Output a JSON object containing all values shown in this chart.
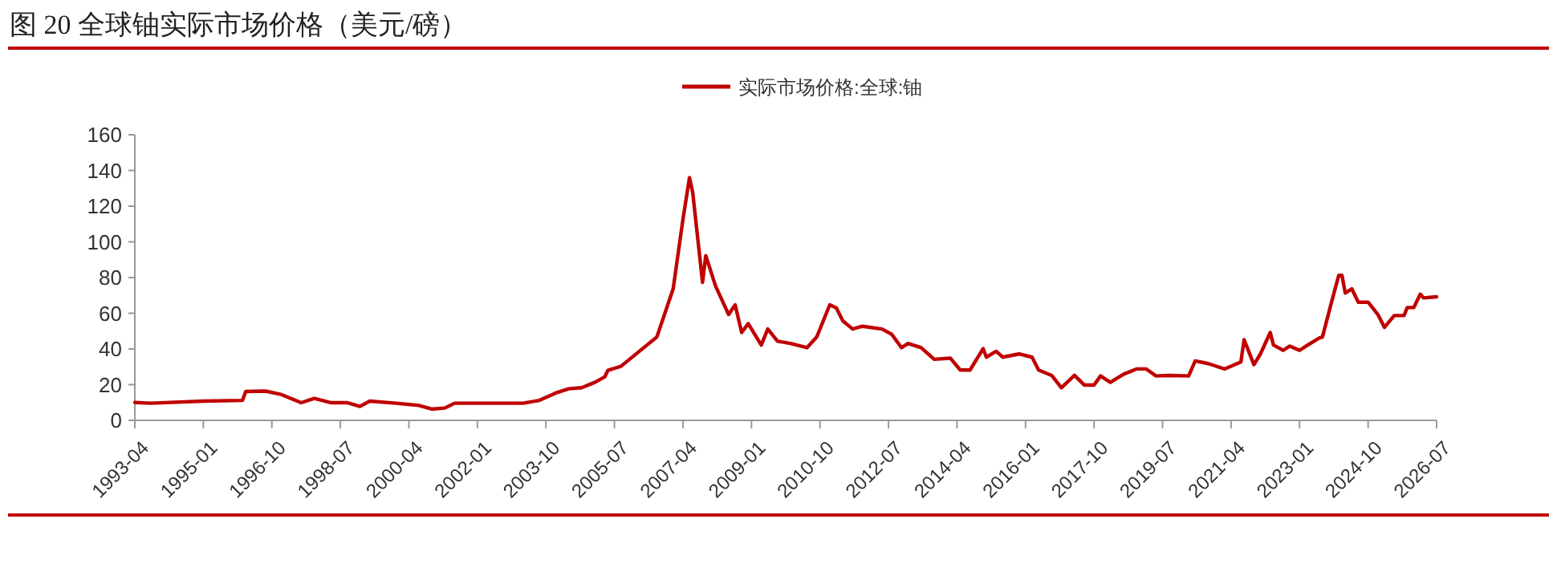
{
  "chart_data": {
    "type": "line",
    "title": "图 20 全球铀实际市场价格（美元/磅）",
    "legend": "top",
    "grid": false,
    "line_style": "solid",
    "xlim": [
      "1993-04",
      "2026-07"
    ],
    "xticks": [
      "1993-04",
      "1995-01",
      "1996-10",
      "1998-07",
      "2000-04",
      "2002-01",
      "2003-10",
      "2005-07",
      "2007-04",
      "2009-01",
      "2010-10",
      "2012-07",
      "2014-04",
      "2016-01",
      "2017-10",
      "2019-07",
      "2021-04",
      "2023-01",
      "2024-10",
      "2026-07"
    ],
    "ylim": [
      0,
      160
    ],
    "yticks": [
      0,
      20,
      40,
      60,
      80,
      100,
      120,
      140,
      160
    ],
    "x": [
      "1993-04",
      "1993-09",
      "1995-01",
      "1996-01",
      "1996-02",
      "1996-08",
      "1997-01",
      "1997-07",
      "1997-11",
      "1998-04",
      "1998-09",
      "1999-01",
      "1999-04",
      "1999-12",
      "2000-07",
      "2000-11",
      "2001-03",
      "2001-06",
      "2002-04",
      "2002-12",
      "2003-03",
      "2003-08",
      "2004-01",
      "2004-05",
      "2004-09",
      "2005-01",
      "2005-04",
      "2005-05",
      "2005-09",
      "2006-08",
      "2007-01",
      "2007-04",
      "2007-06",
      "2007-07",
      "2007-10",
      "2007-11",
      "2008-02",
      "2008-06",
      "2008-08",
      "2008-10",
      "2008-12",
      "2009-04",
      "2009-06",
      "2009-09",
      "2010-01",
      "2010-06",
      "2010-09",
      "2011-01",
      "2011-03",
      "2011-05",
      "2011-08",
      "2011-11",
      "2012-05",
      "2012-08",
      "2012-11",
      "2013-01",
      "2013-05",
      "2013-09",
      "2014-02",
      "2014-05",
      "2014-08",
      "2014-12",
      "2015-01",
      "2015-04",
      "2015-06",
      "2015-11",
      "2016-03",
      "2016-05",
      "2016-09",
      "2016-12",
      "2017-04",
      "2017-07",
      "2017-10",
      "2017-12",
      "2018-03",
      "2018-07",
      "2018-11",
      "2019-02",
      "2019-05",
      "2019-09",
      "2020-03",
      "2020-05",
      "2020-09",
      "2021-02",
      "2021-07",
      "2021-08",
      "2021-11",
      "2022-01",
      "2022-04",
      "2022-05",
      "2022-08",
      "2022-10",
      "2023-01",
      "2023-03",
      "2023-07",
      "2023-08",
      "2023-11",
      "2024-01",
      "2024-02",
      "2024-03",
      "2024-05",
      "2024-07",
      "2024-10",
      "2025-01",
      "2025-03",
      "2025-06",
      "2025-09",
      "2025-10",
      "2025-12",
      "2026-02",
      "2026-03",
      "2026-07"
    ],
    "series": [
      {
        "name": "实际市场价格:全球:铀",
        "color": "#c00000",
        "values": [
          10,
          9.6,
          10.8,
          11.2,
          16.2,
          16.4,
          14.4,
          9.9,
          12.3,
          9.9,
          9.9,
          7.8,
          10.8,
          9.6,
          8.4,
          6.3,
          6.9,
          9.6,
          9.6,
          9.6,
          9.6,
          11.2,
          15.3,
          17.7,
          18.3,
          21.3,
          24.3,
          28,
          30.3,
          46.7,
          73.7,
          112.6,
          136,
          127.6,
          77.3,
          92.3,
          75.2,
          59.3,
          64.7,
          49.2,
          54.2,
          42.2,
          51.2,
          44.3,
          43.1,
          40.7,
          46.7,
          64.7,
          63,
          55.7,
          51.2,
          52.7,
          51.2,
          48.2,
          40.7,
          43.1,
          40.7,
          34.2,
          34.8,
          28.2,
          28.2,
          40.2,
          35.4,
          38.7,
          35.4,
          37.2,
          35.4,
          28.2,
          25.2,
          18.3,
          25.2,
          19.8,
          19.8,
          24.9,
          21.3,
          25.8,
          28.8,
          28.8,
          24.9,
          25.2,
          24.9,
          33.3,
          31.8,
          28.8,
          32.7,
          45.2,
          31.2,
          37.2,
          49.2,
          42.2,
          39.2,
          41.6,
          39.2,
          41.6,
          46.1,
          46.7,
          67.7,
          81.2,
          81.2,
          71.3,
          73.7,
          66.2,
          66.2,
          59.3,
          52.1,
          58.7,
          58.7,
          63.2,
          63.2,
          70.7,
          68.6,
          69.2
        ]
      }
    ]
  }
}
